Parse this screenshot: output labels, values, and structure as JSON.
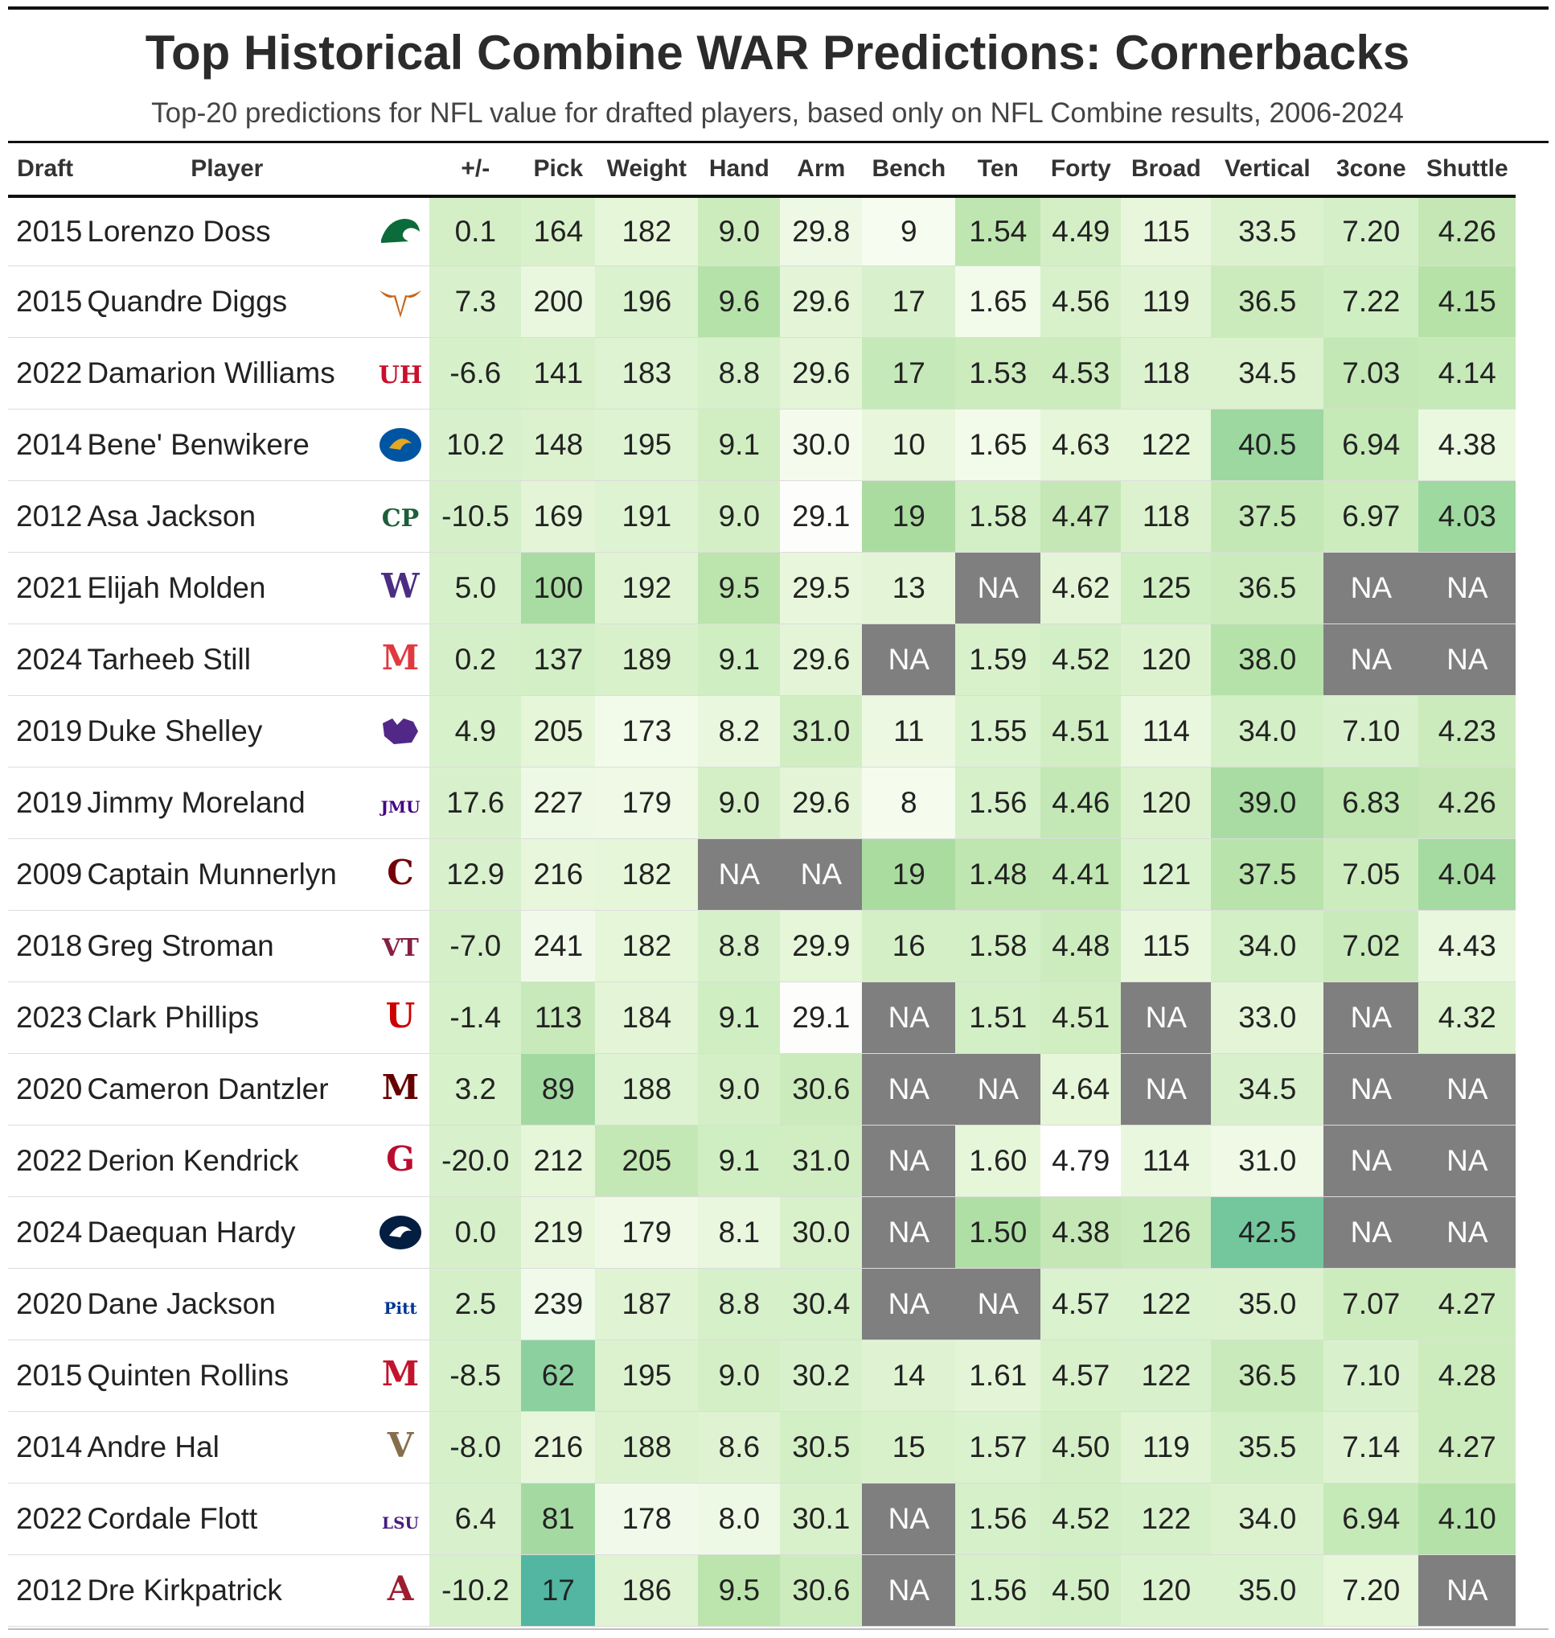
{
  "title": "Top Historical Combine WAR Predictions: Cornerbacks",
  "subtitle": "Top-20 predictions for NFL value for drafted players, based only on NFL Combine results, 2006-2024",
  "headers": [
    "Draft",
    "Player",
    "",
    "+/-",
    "Pick",
    "Weight",
    "Hand",
    "Arm",
    "Bench",
    "Ten",
    "Forty",
    "Broad",
    "Vertical",
    "3cone",
    "Shuttle"
  ],
  "chart_data": {
    "type": "table",
    "title": "Top Historical Combine WAR Predictions: Cornerbacks",
    "subtitle": "Top-20 predictions for NFL value for drafted players, based only on NFL Combine results, 2006-2024",
    "columns": [
      "Draft",
      "Player",
      "+/-",
      "Pick",
      "Weight",
      "Hand",
      "Arm",
      "Bench",
      "Ten",
      "Forty",
      "Broad",
      "Vertical",
      "3cone",
      "Shuttle"
    ],
    "na_label": "NA",
    "rows": [
      {
        "draft": "2015",
        "player": "Lorenzo Doss",
        "logo": "tulane-green-wave-logo",
        "pm": "0.1",
        "pick": "164",
        "weight": "182",
        "hand": "9.0",
        "arm": "29.8",
        "bench": "9",
        "ten": "1.54",
        "forty": "4.49",
        "broad": "115",
        "vertical": "33.5",
        "cone": "7.20",
        "shuttle": "4.26"
      },
      {
        "draft": "2015",
        "player": "Quandre Diggs",
        "logo": "texas-longhorn-logo",
        "pm": "7.3",
        "pick": "200",
        "weight": "196",
        "hand": "9.6",
        "arm": "29.6",
        "bench": "17",
        "ten": "1.65",
        "forty": "4.56",
        "broad": "119",
        "vertical": "36.5",
        "cone": "7.22",
        "shuttle": "4.15"
      },
      {
        "draft": "2022",
        "player": "Damarion Williams",
        "logo": "houston-uh-logo",
        "pm": "-6.6",
        "pick": "141",
        "weight": "183",
        "hand": "8.8",
        "arm": "29.6",
        "bench": "17",
        "ten": "1.53",
        "forty": "4.53",
        "broad": "118",
        "vertical": "34.5",
        "cone": "7.03",
        "shuttle": "4.14"
      },
      {
        "draft": "2014",
        "player": "Bene' Benwikere",
        "logo": "san-jose-state-spartan-logo",
        "pm": "10.2",
        "pick": "148",
        "weight": "195",
        "hand": "9.1",
        "arm": "30.0",
        "bench": "10",
        "ten": "1.65",
        "forty": "4.63",
        "broad": "122",
        "vertical": "40.5",
        "cone": "6.94",
        "shuttle": "4.38"
      },
      {
        "draft": "2012",
        "player": "Asa Jackson",
        "logo": "cal-poly-cp-logo",
        "pm": "-10.5",
        "pick": "169",
        "weight": "191",
        "hand": "9.0",
        "arm": "29.1",
        "bench": "19",
        "ten": "1.58",
        "forty": "4.47",
        "broad": "118",
        "vertical": "37.5",
        "cone": "6.97",
        "shuttle": "4.03"
      },
      {
        "draft": "2021",
        "player": "Elijah Molden",
        "logo": "washington-w-logo",
        "pm": "5.0",
        "pick": "100",
        "weight": "192",
        "hand": "9.5",
        "arm": "29.5",
        "bench": "13",
        "ten": "NA",
        "forty": "4.62",
        "broad": "125",
        "vertical": "36.5",
        "cone": "NA",
        "shuttle": "NA"
      },
      {
        "draft": "2024",
        "player": "Tarheeb Still",
        "logo": "maryland-m-logo",
        "pm": "0.2",
        "pick": "137",
        "weight": "189",
        "hand": "9.1",
        "arm": "29.6",
        "bench": "NA",
        "ten": "1.59",
        "forty": "4.52",
        "broad": "120",
        "vertical": "38.0",
        "cone": "NA",
        "shuttle": "NA"
      },
      {
        "draft": "2019",
        "player": "Duke Shelley",
        "logo": "kansas-state-wildcat-logo",
        "pm": "4.9",
        "pick": "205",
        "weight": "173",
        "hand": "8.2",
        "arm": "31.0",
        "bench": "11",
        "ten": "1.55",
        "forty": "4.51",
        "broad": "114",
        "vertical": "34.0",
        "cone": "7.10",
        "shuttle": "4.23"
      },
      {
        "draft": "2019",
        "player": "Jimmy Moreland",
        "logo": "jmu-logo",
        "pm": "17.6",
        "pick": "227",
        "weight": "179",
        "hand": "9.0",
        "arm": "29.6",
        "bench": "8",
        "ten": "1.56",
        "forty": "4.46",
        "broad": "120",
        "vertical": "39.0",
        "cone": "6.83",
        "shuttle": "4.26"
      },
      {
        "draft": "2009",
        "player": "Captain Munnerlyn",
        "logo": "south-carolina-gamecock-logo",
        "pm": "12.9",
        "pick": "216",
        "weight": "182",
        "hand": "NA",
        "arm": "NA",
        "bench": "19",
        "ten": "1.48",
        "forty": "4.41",
        "broad": "121",
        "vertical": "37.5",
        "cone": "7.05",
        "shuttle": "4.04"
      },
      {
        "draft": "2018",
        "player": "Greg Stroman",
        "logo": "virginia-tech-vt-logo",
        "pm": "-7.0",
        "pick": "241",
        "weight": "182",
        "hand": "8.8",
        "arm": "29.9",
        "bench": "16",
        "ten": "1.58",
        "forty": "4.48",
        "broad": "115",
        "vertical": "34.0",
        "cone": "7.02",
        "shuttle": "4.43"
      },
      {
        "draft": "2023",
        "player": "Clark Phillips",
        "logo": "utah-drum-u-logo",
        "pm": "-1.4",
        "pick": "113",
        "weight": "184",
        "hand": "9.1",
        "arm": "29.1",
        "bench": "NA",
        "ten": "1.51",
        "forty": "4.51",
        "broad": "NA",
        "vertical": "33.0",
        "cone": "NA",
        "shuttle": "4.32"
      },
      {
        "draft": "2020",
        "player": "Cameron Dantzler",
        "logo": "mississippi-state-m-logo",
        "pm": "3.2",
        "pick": "89",
        "weight": "188",
        "hand": "9.0",
        "arm": "30.6",
        "bench": "NA",
        "ten": "NA",
        "forty": "4.64",
        "broad": "NA",
        "vertical": "34.5",
        "cone": "NA",
        "shuttle": "NA"
      },
      {
        "draft": "2022",
        "player": "Derion Kendrick",
        "logo": "georgia-g-logo",
        "pm": "-20.0",
        "pick": "212",
        "weight": "205",
        "hand": "9.1",
        "arm": "31.0",
        "bench": "NA",
        "ten": "1.60",
        "forty": "4.79",
        "broad": "114",
        "vertical": "31.0",
        "cone": "NA",
        "shuttle": "NA"
      },
      {
        "draft": "2024",
        "player": "Daequan Hardy",
        "logo": "penn-state-lion-logo",
        "pm": "0.0",
        "pick": "219",
        "weight": "179",
        "hand": "8.1",
        "arm": "30.0",
        "bench": "NA",
        "ten": "1.50",
        "forty": "4.38",
        "broad": "126",
        "vertical": "42.5",
        "cone": "NA",
        "shuttle": "NA"
      },
      {
        "draft": "2020",
        "player": "Dane Jackson",
        "logo": "pitt-script-logo",
        "pm": "2.5",
        "pick": "239",
        "weight": "187",
        "hand": "8.8",
        "arm": "30.4",
        "bench": "NA",
        "ten": "NA",
        "forty": "4.57",
        "broad": "122",
        "vertical": "35.0",
        "cone": "7.07",
        "shuttle": "4.27"
      },
      {
        "draft": "2015",
        "player": "Quinten Rollins",
        "logo": "miami-ohio-m-logo",
        "pm": "-8.5",
        "pick": "62",
        "weight": "195",
        "hand": "9.0",
        "arm": "30.2",
        "bench": "14",
        "ten": "1.61",
        "forty": "4.57",
        "broad": "122",
        "vertical": "36.5",
        "cone": "7.10",
        "shuttle": "4.28"
      },
      {
        "draft": "2014",
        "player": "Andre Hal",
        "logo": "vanderbilt-v-logo",
        "pm": "-8.0",
        "pick": "216",
        "weight": "188",
        "hand": "8.6",
        "arm": "30.5",
        "bench": "15",
        "ten": "1.57",
        "forty": "4.50",
        "broad": "119",
        "vertical": "35.5",
        "cone": "7.14",
        "shuttle": "4.27"
      },
      {
        "draft": "2022",
        "player": "Cordale Flott",
        "logo": "lsu-logo",
        "pm": "6.4",
        "pick": "81",
        "weight": "178",
        "hand": "8.0",
        "arm": "30.1",
        "bench": "NA",
        "ten": "1.56",
        "forty": "4.52",
        "broad": "122",
        "vertical": "34.0",
        "cone": "6.94",
        "shuttle": "4.10"
      },
      {
        "draft": "2012",
        "player": "Dre Kirkpatrick",
        "logo": "alabama-script-a-logo",
        "pm": "-10.2",
        "pick": "17",
        "weight": "186",
        "hand": "9.5",
        "arm": "30.6",
        "bench": "NA",
        "ten": "1.56",
        "forty": "4.50",
        "broad": "120",
        "vertical": "35.0",
        "cone": "7.20",
        "shuttle": "NA"
      }
    ],
    "cell_colors": [
      [
        "#d4efc6",
        "#d9f1cb",
        "#e6f6d9",
        "#cdecbe",
        "#eef9e5",
        "#f6fcef",
        "#bfe6b0",
        "#d4efc6",
        "#e8f7dc",
        "#dcf2cf",
        "#d5f0c9",
        "#c4e7b5"
      ],
      [
        "#d8f1cc",
        "#e9f7de",
        "#daf2ce",
        "#b5e2a9",
        "#e3f5d6",
        "#d8f1cc",
        "#f2fbe9",
        "#d9f1cb",
        "#e0f4d4",
        "#cbebbd",
        "#cfeec2",
        "#b6e2a8"
      ],
      [
        "#d6f0ca",
        "#d9f1cb",
        "#ddf3d1",
        "#d6f0ca",
        "#e3f5d6",
        "#c5e9b8",
        "#cdecbe",
        "#cdecbe",
        "#dcf2cf",
        "#dcf2cf",
        "#c3e8b5",
        "#c6e9b8"
      ],
      [
        "#d8f1cc",
        "#dcf2cf",
        "#def3d2",
        "#d0eec2",
        "#f4fbec",
        "#e8f7dc",
        "#f2fbe9",
        "#e6f6d9",
        "#e6f6d9",
        "#9cd8a0",
        "#c6e9b8",
        "#eaf8e0"
      ],
      [
        "#d5f0c9",
        "#e3f5d6",
        "#def3d2",
        "#d4efc6",
        "#fdfefb",
        "#aadca0",
        "#d3efc6",
        "#c4e7b5",
        "#dcf2cf",
        "#c3e8b5",
        "#ccecbe",
        "#9ed9a0"
      ],
      [
        "#d6f0ca",
        "#a9dca2",
        "#e0f4d4",
        "#bce4ad",
        "#e8f7dc",
        "#e3f5d6",
        "#7f7f7f",
        "#e3f5d6",
        "#cfeec2",
        "#cbebbd",
        "#7f7f7f",
        "#7f7f7f"
      ],
      [
        "#d5f0c9",
        "#d2efc5",
        "#d9f1cb",
        "#cfeec2",
        "#e3f5d6",
        "#7f7f7f",
        "#d9f1cb",
        "#d3efc6",
        "#dcf2cf",
        "#b5e2a9",
        "#7f7f7f",
        "#7f7f7f"
      ],
      [
        "#d7f1cb",
        "#e6f6d9",
        "#f2fbe9",
        "#e9f7de",
        "#d0eec2",
        "#ecf8e2",
        "#daf2ce",
        "#d0eec2",
        "#e9f7de",
        "#d3efc6",
        "#d8f1cc",
        "#cbebbd"
      ],
      [
        "#d8f1cc",
        "#eef9e5",
        "#eff9e6",
        "#d4efc6",
        "#e3f5d6",
        "#f5fced",
        "#d6f0ca",
        "#c3e8b5",
        "#dcf2cf",
        "#a9dca2",
        "#bfe6b0",
        "#c4e7b5"
      ],
      [
        "#d8f1cc",
        "#e8f7dc",
        "#e6f6d9",
        "#7f7f7f",
        "#7f7f7f",
        "#aadca0",
        "#bfe6b0",
        "#c0e6b1",
        "#daf2ce",
        "#b8e3ab",
        "#ccecbe",
        "#a5dba1"
      ],
      [
        "#d5f0c9",
        "#f1faea",
        "#e6f6d9",
        "#d6f0ca",
        "#e6f6d9",
        "#d4efc6",
        "#d3efc6",
        "#cdecbe",
        "#e8f7dc",
        "#d3efc6",
        "#c9eabb",
        "#e9f7de"
      ],
      [
        "#d6f0ca",
        "#c8e9ba",
        "#e3f5d6",
        "#cfeec2",
        "#fdfefb",
        "#7f7f7f",
        "#d3efc6",
        "#d0eec2",
        "#7f7f7f",
        "#e3f5d6",
        "#7f7f7f",
        "#dcf2cf"
      ],
      [
        "#d7f1cb",
        "#a2d9a1",
        "#ddf3d1",
        "#d4efc6",
        "#cbebbd",
        "#7f7f7f",
        "#7f7f7f",
        "#e6f6d9",
        "#7f7f7f",
        "#d8f1cc",
        "#7f7f7f",
        "#7f7f7f"
      ],
      [
        "#d8f1cc",
        "#e6f6d9",
        "#c3e8b5",
        "#cfeec2",
        "#d0eec2",
        "#7f7f7f",
        "#e6f6d9",
        "#ffffff",
        "#e9f7de",
        "#eff9e6",
        "#7f7f7f",
        "#7f7f7f"
      ],
      [
        "#d5f0c9",
        "#e8f7dc",
        "#eff9e6",
        "#e9f7de",
        "#d9f1cb",
        "#7f7f7f",
        "#b0dfa5",
        "#c4e7b5",
        "#c9eabb",
        "#74c69d",
        "#7f7f7f",
        "#7f7f7f"
      ],
      [
        "#d5f0c9",
        "#f0faea",
        "#e0f4d4",
        "#d6f0ca",
        "#d6f0ca",
        "#7f7f7f",
        "#7f7f7f",
        "#daf2ce",
        "#daf2ce",
        "#dcf2cf",
        "#cdecbe",
        "#cdecbe"
      ],
      [
        "#d6f0ca",
        "#8dd0a0",
        "#dcf2cf",
        "#d4efc6",
        "#d8f1cc",
        "#dff3d3",
        "#e3f5d6",
        "#d9f1cb",
        "#d8f1cc",
        "#c9eabb",
        "#d8f1cc",
        "#cdecbe"
      ],
      [
        "#d6f0ca",
        "#e8f7dc",
        "#dcf2cf",
        "#dff3d3",
        "#d3efc6",
        "#d9f1cb",
        "#daf2ce",
        "#d4efc6",
        "#e0f4d4",
        "#d3efc6",
        "#dff3d3",
        "#cdecbe"
      ],
      [
        "#d8f1cc",
        "#a4daa1",
        "#f1faea",
        "#eef9e5",
        "#d9f1cb",
        "#7f7f7f",
        "#d6f0ca",
        "#d3efc6",
        "#d6f0ca",
        "#dcf2cf",
        "#c6e9b8",
        "#b3e1a7"
      ],
      [
        "#d6f0ca",
        "#52b6a2",
        "#e0f4d4",
        "#bce4ad",
        "#cdecbe",
        "#7f7f7f",
        "#d6f0ca",
        "#d3efc6",
        "#daf2ce",
        "#daf2ce",
        "#e6f6d9",
        "#7f7f7f"
      ]
    ]
  }
}
